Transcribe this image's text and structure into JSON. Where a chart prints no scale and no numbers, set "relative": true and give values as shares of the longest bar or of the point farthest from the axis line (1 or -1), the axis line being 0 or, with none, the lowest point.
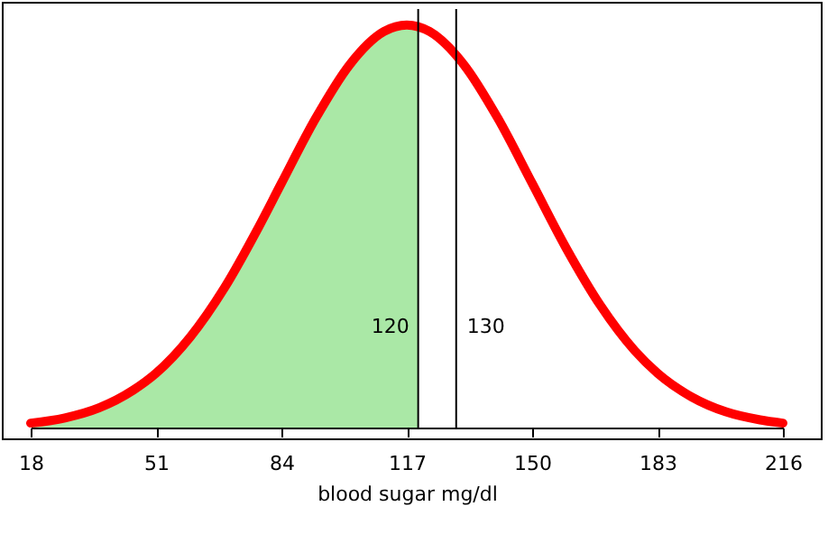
{
  "chart_data": {
    "type": "line",
    "relative": true,
    "xlabel": "blood sugar mg/dl",
    "xlim": [
      18,
      216
    ],
    "xticks": [
      18,
      51,
      84,
      117,
      150,
      183,
      216
    ],
    "grid": false,
    "marker": "none",
    "line_style": "solid",
    "series": [
      {
        "type": "area",
        "color": "#aae8a6",
        "x": [
          18,
          27,
          36,
          45,
          51,
          60,
          69,
          78,
          84,
          93,
          102,
          111,
          117,
          120
        ],
        "values": [
          0.011,
          0.024,
          0.049,
          0.093,
          0.135,
          0.225,
          0.347,
          0.498,
          0.607,
          0.768,
          0.902,
          0.984,
          1.0,
          0.996
        ]
      },
      {
        "color": "#ff0000",
        "x": [
          18,
          27,
          36,
          45,
          51,
          60,
          69,
          78,
          84,
          93,
          102,
          111,
          117,
          120,
          123,
          132,
          141,
          150,
          159,
          168,
          177,
          183,
          192,
          201,
          210,
          216
        ],
        "values": [
          0.011,
          0.024,
          0.049,
          0.093,
          0.135,
          0.225,
          0.347,
          0.498,
          0.607,
          0.768,
          0.902,
          0.984,
          1.0,
          0.996,
          0.984,
          0.902,
          0.768,
          0.607,
          0.445,
          0.303,
          0.191,
          0.135,
          0.076,
          0.039,
          0.019,
          0.011
        ]
      }
    ],
    "ref_lines": [
      {
        "axis": "x",
        "value": 120,
        "label": "120",
        "color": "#000000"
      },
      {
        "axis": "x",
        "value": 130,
        "label": "130",
        "color": "#000000"
      }
    ]
  }
}
